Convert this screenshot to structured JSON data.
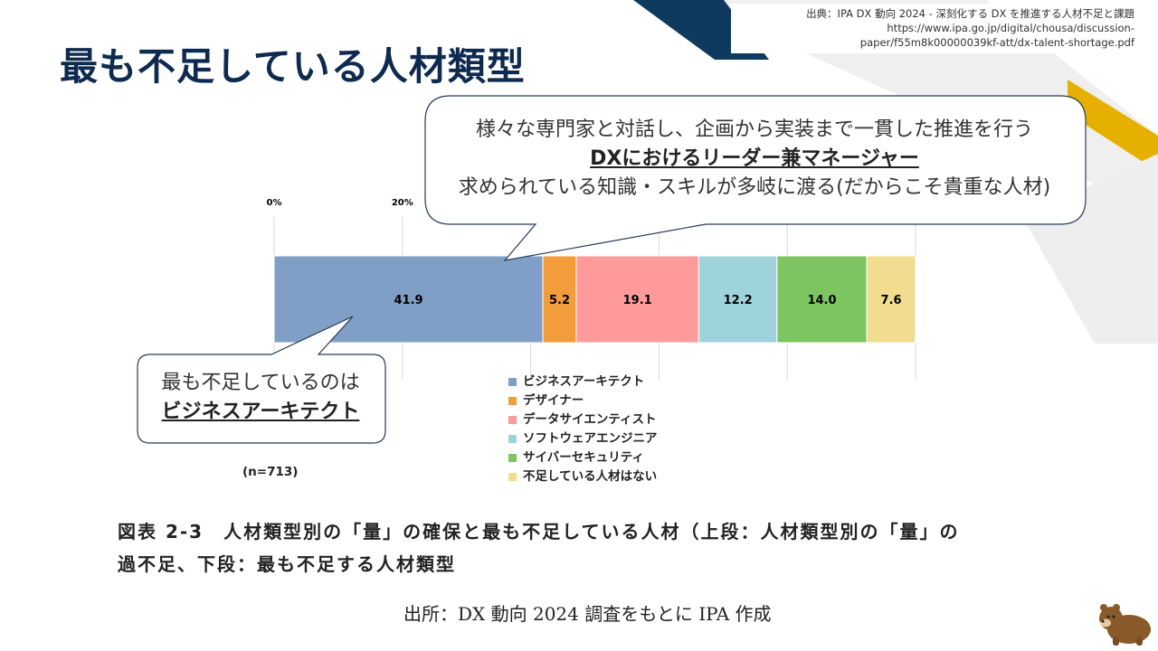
{
  "page": {
    "title": "最も不足している人材類型",
    "source_lines": [
      "出典：IPA DX 動向 2024 - 深刻化する DX を推進する人材不足と課題",
      "https://www.ipa.go.jp/digital/chousa/discussion-",
      "paper/f55m8k00000039kf-att/dx-talent-shortage.pdf"
    ],
    "callout_top": {
      "line1": "様々な専門家と対話し、企画から実装まで一貫した推進を行う",
      "line2": "DXにおけるリーダー兼マネージャー",
      "line3": "求められている知識・スキルが多岐に渡る(だからこそ貴重な人材)"
    },
    "callout_left": {
      "line1": "最も不足しているのは",
      "line2": "ビジネスアーキテクト"
    },
    "n_label": "(n=713)",
    "caption_lines": [
      "図表 2-3　人材類型別の「量」の確保と最も不足している人材（上段：人材類型別の「量」の",
      "過不足、下段：最も不足する人材類型"
    ],
    "origin": "出所：DX 動向 2024 調査をもとに IPA 作成",
    "colors": {
      "title": "#0e2a4f",
      "navy_stripe": "#0f3a5f",
      "gold_stripe": "#e6b000",
      "grey_stripe": "#ececec"
    }
  },
  "chart_data": {
    "type": "bar",
    "orientation": "horizontal-stacked-100",
    "xaxis_ticks": [
      "0%",
      "20%"
    ],
    "xlim": [
      0,
      100
    ],
    "n": 713,
    "series": [
      {
        "name": "ビジネスアーキテクト",
        "value": 41.9,
        "label": "41.9",
        "color": "#7f9fc6"
      },
      {
        "name": "デザイナー",
        "value": 5.2,
        "label": "5.2",
        "color": "#f39c3c"
      },
      {
        "name": "データサイエンティスト",
        "value": 19.1,
        "label": "19.1",
        "color": "#ff9a9a"
      },
      {
        "name": "ソフトウェアエンジニア",
        "value": 12.2,
        "label": "12.2",
        "color": "#9fd3dc"
      },
      {
        "name": "サイバーセキュリティ",
        "value": 14.0,
        "label": "14.0",
        "color": "#7cc560"
      },
      {
        "name": "不足している人材はない",
        "value": 7.6,
        "label": "7.6",
        "color": "#f1dc8f"
      }
    ],
    "legend_position": "below"
  }
}
